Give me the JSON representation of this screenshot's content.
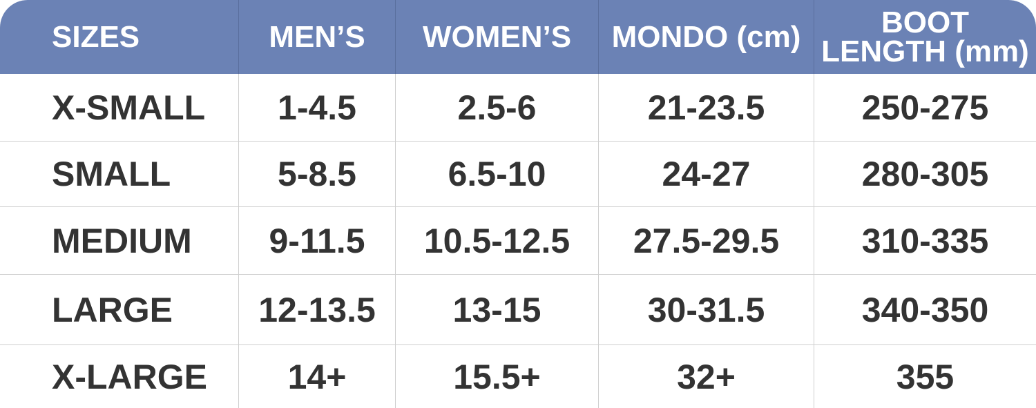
{
  "table": {
    "header": [
      "SIZES",
      "MEN’S",
      "WOMEN’S",
      "MONDO (cm)",
      "BOOT\nLENGTH (mm)"
    ],
    "rows": [
      [
        "X-SMALL",
        "1-4.5",
        "2.5-6",
        "21-23.5",
        "250-275"
      ],
      [
        "SMALL",
        "5-8.5",
        "6.5-10",
        "24-27",
        "280-305"
      ],
      [
        "MEDIUM",
        "9-11.5",
        "10.5-12.5",
        "27.5-29.5",
        "310-335"
      ],
      [
        "LARGE",
        "12-13.5",
        "13-15",
        "30-31.5",
        "340-350"
      ],
      [
        "X-LARGE",
        "14+",
        "15.5+",
        "32+",
        "355"
      ]
    ]
  }
}
